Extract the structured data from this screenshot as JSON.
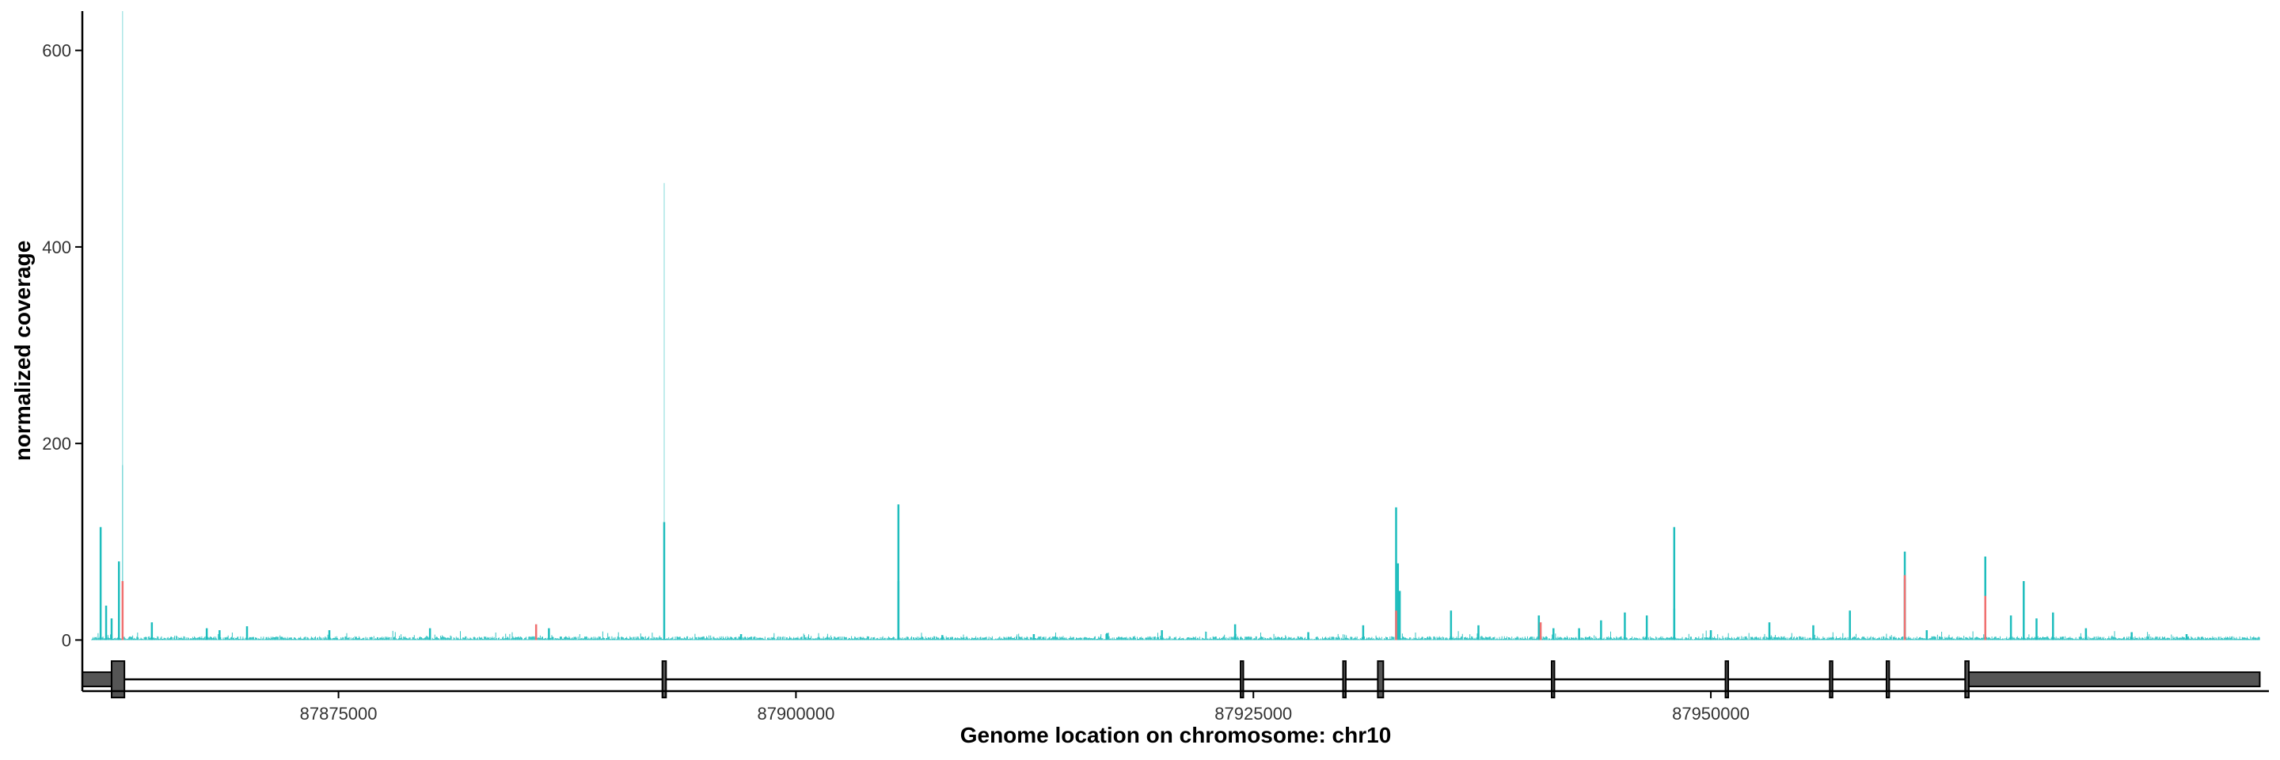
{
  "chart_data": {
    "type": "area",
    "title": "",
    "xlabel": "Genome location on chromosome: chr10",
    "ylabel": "normalized coverage",
    "xlim": [
      87861000,
      87980500
    ],
    "ylim": [
      -52,
      640
    ],
    "x_ticks": [
      87875000,
      87900000,
      87925000,
      87950000
    ],
    "x_tick_labels": [
      "87875000",
      "87900000",
      "87925000",
      "87950000"
    ],
    "y_ticks": [
      0,
      200,
      400,
      600
    ],
    "y_tick_labels": [
      "0",
      "200",
      "400",
      "600"
    ],
    "grid": false,
    "legend": "none",
    "colors": {
      "series_teal": "#1ebdbd",
      "series_red": "#f07070",
      "axis": "#000000",
      "exon_fill": "#555555",
      "exon_stroke": "#000000"
    },
    "series": [
      {
        "color": "#1ebdbd",
        "baseline_level": 2,
        "peaks": [
          [
            87862000,
            115
          ],
          [
            87862300,
            35
          ],
          [
            87862600,
            22
          ],
          [
            87863000,
            80
          ],
          [
            87863200,
            640
          ],
          [
            87863200,
            178
          ],
          [
            87864800,
            18
          ],
          [
            87867800,
            12
          ],
          [
            87868500,
            10
          ],
          [
            87870000,
            14
          ],
          [
            87874500,
            10
          ],
          [
            87880000,
            12
          ],
          [
            87886500,
            12
          ],
          [
            87892800,
            465
          ],
          [
            87892800,
            120
          ],
          [
            87897000,
            6
          ],
          [
            87905600,
            138
          ],
          [
            87905600,
            60
          ],
          [
            87908000,
            5
          ],
          [
            87913000,
            6
          ],
          [
            87917000,
            7
          ],
          [
            87920000,
            10
          ],
          [
            87924000,
            16
          ],
          [
            87928000,
            8
          ],
          [
            87931000,
            15
          ],
          [
            87932800,
            135
          ],
          [
            87932900,
            78
          ],
          [
            87933000,
            50
          ],
          [
            87935800,
            30
          ],
          [
            87937300,
            15
          ],
          [
            87940600,
            25
          ],
          [
            87941400,
            12
          ],
          [
            87942800,
            12
          ],
          [
            87944000,
            20
          ],
          [
            87945300,
            28
          ],
          [
            87946500,
            25
          ],
          [
            87948000,
            115
          ],
          [
            87948000,
            32
          ],
          [
            87950000,
            10
          ],
          [
            87953200,
            18
          ],
          [
            87955600,
            15
          ],
          [
            87957600,
            30
          ],
          [
            87960600,
            90
          ],
          [
            87960600,
            62
          ],
          [
            87961800,
            10
          ],
          [
            87965000,
            85
          ],
          [
            87965000,
            40
          ],
          [
            87966400,
            25
          ],
          [
            87967100,
            60
          ],
          [
            87967800,
            22
          ],
          [
            87968700,
            28
          ],
          [
            87970500,
            12
          ],
          [
            87973000,
            8
          ],
          [
            87976000,
            6
          ]
        ]
      },
      {
        "color": "#f07070",
        "baseline_level": 0,
        "peaks": [
          [
            87863200,
            60
          ],
          [
            87885800,
            16
          ],
          [
            87932800,
            30
          ],
          [
            87940700,
            18
          ],
          [
            87960600,
            66
          ],
          [
            87965000,
            45
          ]
        ]
      }
    ],
    "gene_model": {
      "line": [
        87863300,
        87980000
      ],
      "exons": [
        [
          87861000,
          87862600,
          "utr"
        ],
        [
          87862600,
          87863300,
          "cds"
        ],
        [
          87892700,
          87892900,
          "cds"
        ],
        [
          87924300,
          87924450,
          "cds"
        ],
        [
          87929900,
          87930050,
          "cds"
        ],
        [
          87931800,
          87932100,
          "cds"
        ],
        [
          87941300,
          87941450,
          "cds"
        ],
        [
          87950800,
          87950950,
          "cds"
        ],
        [
          87956500,
          87956650,
          "cds"
        ],
        [
          87959600,
          87959750,
          "cds"
        ],
        [
          87963900,
          87964100,
          "cds"
        ],
        [
          87964100,
          87980000,
          "utr"
        ]
      ]
    }
  }
}
